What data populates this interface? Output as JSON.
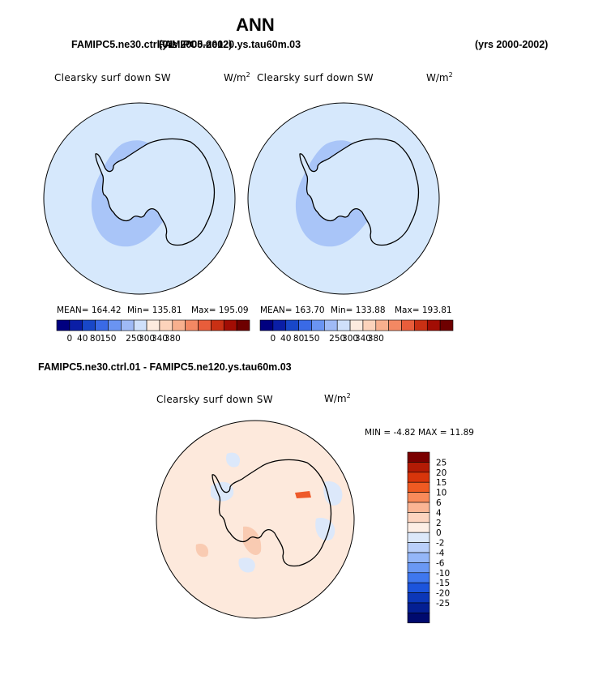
{
  "title": "ANN",
  "top_left_case_a": "FAMIPC5.ne30.ctrl.01",
  "top_left_case_b": "FAMIPC5.ne120.ys.tau60m.03",
  "top_left_years": "(yrs 2000-2002)",
  "top_right_years": "(yrs 2000-2002)",
  "diff_case_title": "FAMIPC5.ne30.ctrl.01 - FAMIPC5.ne120.ys.tau60m.03",
  "panels": [
    {
      "field": "Clearsky surf down SW",
      "units_base": "W/m",
      "units_exp": "2",
      "mean": "MEAN= 164.42",
      "min": "Min= 135.81",
      "max": "Max= 195.09"
    },
    {
      "field": "Clearsky surf down SW",
      "units_base": "W/m",
      "units_exp": "2",
      "mean": "MEAN= 163.70",
      "min": "Min= 133.88",
      "max": "Max= 193.81"
    }
  ],
  "diff_panel": {
    "field": "Clearsky surf down SW",
    "units_base": "W/m",
    "units_exp": "2",
    "minmax": "MIN =   -4.82 MAX =   11.89"
  },
  "colorbar_abs": {
    "colors": [
      "#000080",
      "#0a1ea6",
      "#1847c8",
      "#3a6ae6",
      "#6a94f2",
      "#9fbaf6",
      "#cfe0fb",
      "#fdebdf",
      "#fcd3bb",
      "#f8b08e",
      "#f38863",
      "#e85d3b",
      "#c93014",
      "#a20d04",
      "#6e0000"
    ],
    "ticks": [
      "0",
      "40",
      "80",
      "150",
      "250",
      "300",
      "340",
      "380"
    ]
  },
  "colorbar_diff": {
    "colors_top_to_bottom": [
      "#7a0000",
      "#b31b05",
      "#d8350b",
      "#ef5a22",
      "#f98a5a",
      "#fbb594",
      "#fdd4bf",
      "#fdeee5",
      "#dce8fa",
      "#b9cffa",
      "#94b6f8",
      "#6a98f4",
      "#3f77ee",
      "#1c54dc",
      "#0c37b8",
      "#041f93",
      "#000a6e"
    ],
    "ticks": [
      "25",
      "20",
      "15",
      "10",
      "6",
      "4",
      "2",
      "0",
      "-2",
      "-4",
      "-6",
      "-10",
      "-15",
      "-20",
      "-25"
    ]
  },
  "map_colors": {
    "light_blue": "#d6e8fc",
    "mid_blue": "#a9c5f8",
    "light_orange": "#fde9dc",
    "mid_orange": "#f9cbb2",
    "red_patch": "#ee5a2a"
  }
}
